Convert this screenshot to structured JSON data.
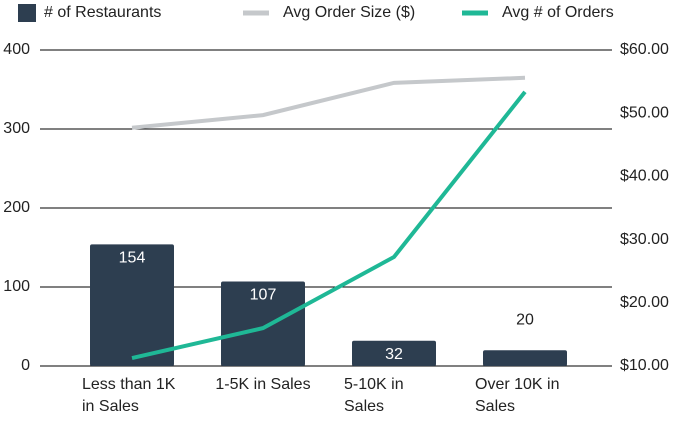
{
  "chart_data": {
    "type": "bar-line",
    "categories": [
      "Less than 1K in Sales",
      "1-5K in Sales",
      "5-10K in Sales",
      "Over 10K in Sales"
    ],
    "series": [
      {
        "name": "# of Restaurants",
        "type": "bar",
        "color": "#2d3e50",
        "values": [
          154,
          107,
          32,
          20
        ]
      },
      {
        "name": "Avg Order Size ($)",
        "type": "line",
        "color": "#c5c8cb",
        "axis": "y2",
        "values": [
          47.7,
          49.7,
          54.8,
          55.6
        ]
      },
      {
        "name": "Avg # of Orders",
        "type": "line",
        "color": "#1fb896",
        "values": [
          10,
          48,
          138,
          347
        ]
      }
    ],
    "ylim": [
      0,
      400
    ],
    "yticks": [
      0,
      100,
      200,
      300,
      400
    ],
    "y2lim": [
      10,
      60
    ],
    "y2ticks": [
      {
        "value": 10,
        "label": "$10.00"
      },
      {
        "value": 20,
        "label": "$20.00"
      },
      {
        "value": 30,
        "label": "$30.00"
      },
      {
        "value": 40,
        "label": "$40.00"
      },
      {
        "value": 50,
        "label": "$50.00"
      },
      {
        "value": 60,
        "label": "$60.00"
      }
    ],
    "grid": true,
    "legend": "top"
  }
}
